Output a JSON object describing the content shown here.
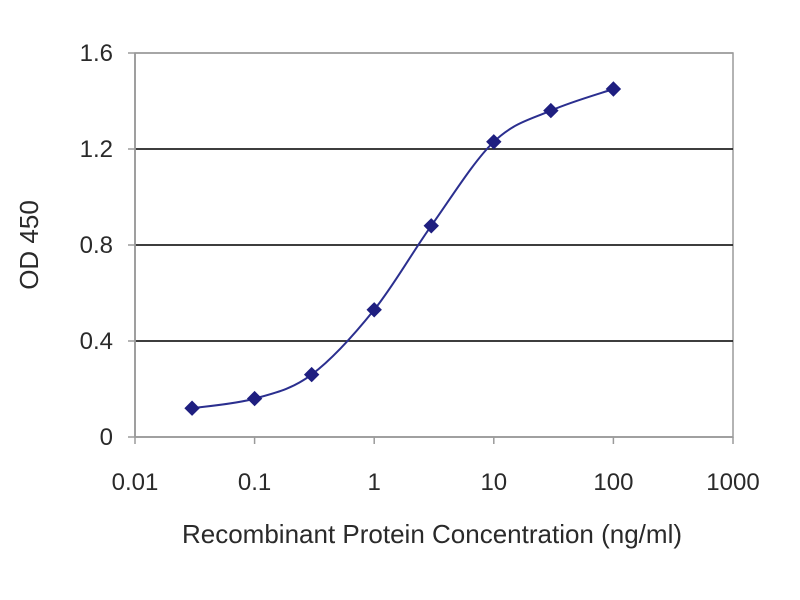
{
  "chart_data": {
    "type": "line",
    "xlabel": "Recombinant Protein Concentration (ng/ml)",
    "ylabel": "OD 450",
    "x_scale": "log",
    "xlim": [
      0.01,
      1000
    ],
    "ylim": [
      0,
      1.6
    ],
    "x_ticks": [
      {
        "value": 0.01,
        "label": "0.01"
      },
      {
        "value": 0.1,
        "label": "0.1"
      },
      {
        "value": 1,
        "label": "1"
      },
      {
        "value": 10,
        "label": "10"
      },
      {
        "value": 100,
        "label": "100"
      },
      {
        "value": 1000,
        "label": "1000"
      }
    ],
    "y_ticks": [
      {
        "value": 0,
        "label": "0"
      },
      {
        "value": 0.4,
        "label": "0.4"
      },
      {
        "value": 0.8,
        "label": "0.8"
      },
      {
        "value": 1.2,
        "label": "1.2"
      },
      {
        "value": 1.6,
        "label": "1.6"
      }
    ],
    "grid": "horizontal",
    "series": [
      {
        "x": [
          0.03,
          0.1,
          0.3,
          1,
          3,
          10,
          30,
          100
        ],
        "y": [
          0.12,
          0.16,
          0.26,
          0.53,
          0.88,
          1.23,
          1.36,
          1.45
        ]
      }
    ],
    "colors": {
      "line": "#2b2f8f",
      "marker": "#1f1f80",
      "grid": "#222222",
      "axis": "#9a9a9a",
      "plot_background": "#ffffff"
    }
  }
}
